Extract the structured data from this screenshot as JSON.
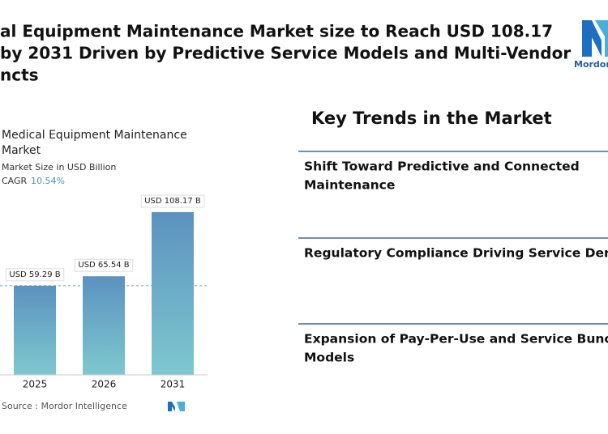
{
  "header": {
    "title": [
      "al Equipment Maintenance Market size to Reach USD 108.17",
      "by 2031 Driven by Predictive Service Models and Multi-Vendor",
      "ncts"
    ],
    "logo": "Mordor"
  },
  "chart_data": {
    "type": "bar",
    "title": [
      "Medical Equipment Maintenance",
      "Market"
    ],
    "subtitle": "Market Size in USD Billion",
    "cagr_label": "CAGR",
    "cagr_value": "10.54%",
    "categories": [
      "2025",
      "2026",
      "2031"
    ],
    "values": [
      59.29,
      65.54,
      108.17
    ],
    "value_labels": [
      "USD 59.29 B",
      "USD 65.54 B",
      "USD 108.17 B"
    ],
    "color": [
      "#5b92bf",
      "#7ec8cf"
    ],
    "source": "Source : Mordor Intelligence"
  },
  "trends": {
    "title": "Key Trends in the Market",
    "items": [
      [
        "Shift Toward Predictive and Connected",
        "Maintenance"
      ],
      [
        "Regulatory Compliance Driving Service Der"
      ],
      [
        "Expansion of Pay-Per-Use and Service Bunc",
        "Models"
      ]
    ]
  }
}
